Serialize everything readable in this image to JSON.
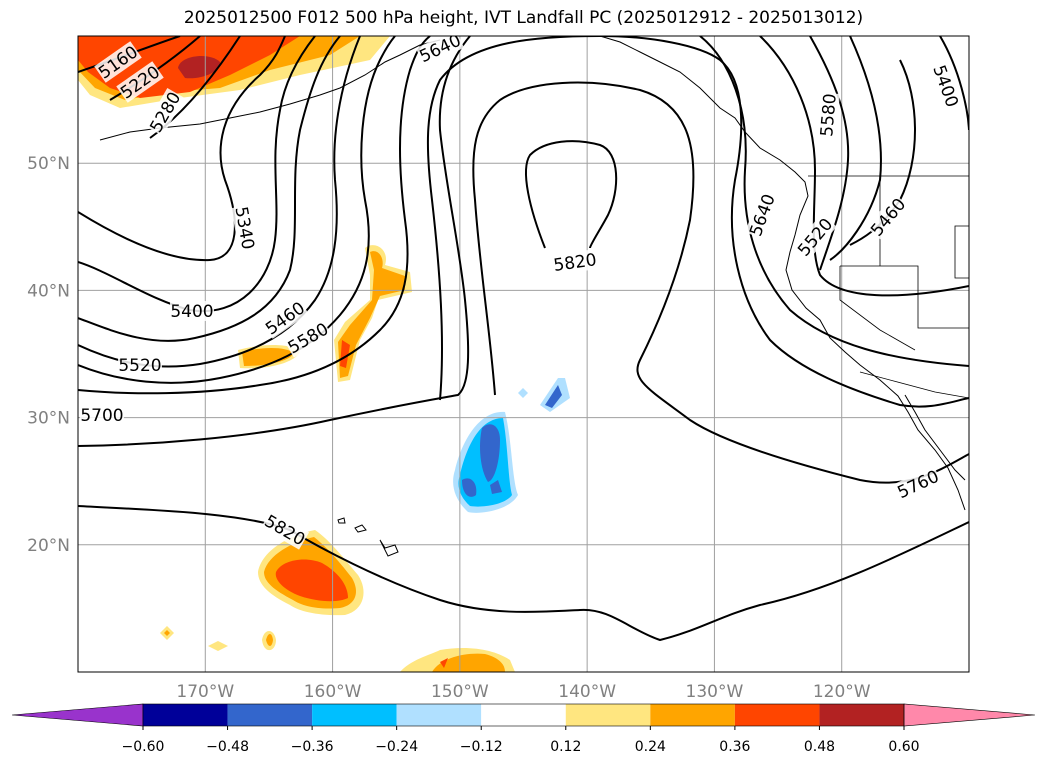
{
  "chart_data": {
    "type": "contour_map",
    "title": "2025012500 F012 500 hPa height, IVT Landfall PC (2025012912 - 2025013012)",
    "x_axis": {
      "range": [
        -180,
        -110
      ],
      "ticks": [
        -170,
        -160,
        -150,
        -140,
        -130,
        -120
      ],
      "tick_labels": [
        "170°W",
        "160°W",
        "150°W",
        "140°W",
        "130°W",
        "120°W"
      ]
    },
    "y_axis": {
      "range": [
        10,
        60
      ],
      "ticks": [
        20,
        30,
        40,
        50
      ],
      "tick_labels": [
        "20°N",
        "30°N",
        "40°N",
        "50°N"
      ]
    },
    "grid": true,
    "contour_labels": [
      "5160",
      "5220",
      "5280",
      "5340",
      "5400",
      "5460",
      "5520",
      "5580",
      "5640",
      "5700",
      "5760",
      "5820"
    ],
    "colorbar": {
      "levels": [
        -0.6,
        -0.48,
        -0.36,
        -0.24,
        -0.12,
        0.12,
        0.24,
        0.36,
        0.48,
        0.6
      ],
      "tick_labels": [
        "−0.60",
        "−0.48",
        "−0.36",
        "−0.24",
        "−0.12",
        "0.12",
        "0.24",
        "0.36",
        "0.48",
        "0.60"
      ],
      "colors": [
        "#9933cc",
        "#000099",
        "#3366cc",
        "#00bfff",
        "#b0e0ff",
        "#ffffff",
        "#ffe680",
        "#ffa500",
        "#ff4500",
        "#b22222",
        "#ff88aa"
      ],
      "extend": "both"
    }
  }
}
